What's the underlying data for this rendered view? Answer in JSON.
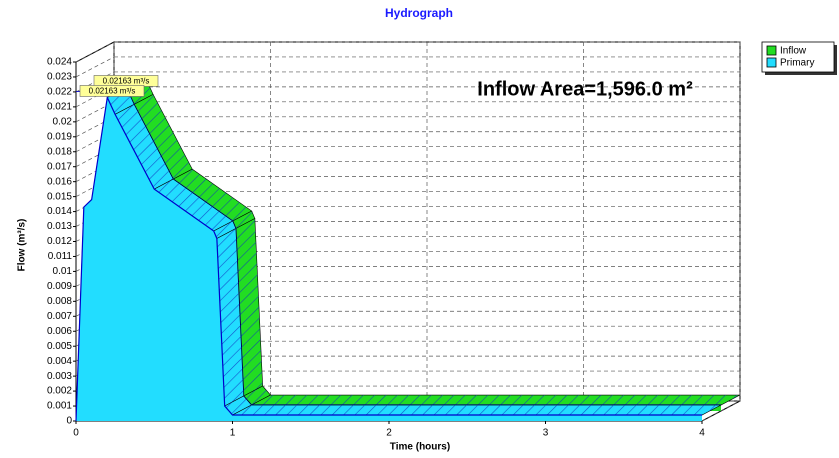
{
  "chart_data": {
    "type": "line",
    "title": "Hydrograph",
    "x_label": "Time (hours)",
    "y_label": "Flow (m³/s)",
    "annotation": "Inflow Area=1,596.0 m²",
    "peak_labels": [
      "0.02163 m³/s",
      "0.02163 m³/s"
    ],
    "x": [
      0,
      0.05,
      0.1,
      0.2,
      0.25,
      0.5,
      0.88,
      0.9,
      0.95,
      1.0,
      4.0
    ],
    "series": [
      {
        "name": "Inflow",
        "color": "#22dd22",
        "values": [
          0,
          0.0143,
          0.0148,
          0.02163,
          0.0205,
          0.0155,
          0.0127,
          0.0122,
          0.001,
          0.0004,
          0.0004
        ]
      },
      {
        "name": "Primary",
        "color": "#22ddff",
        "values": [
          0,
          0.0143,
          0.0148,
          0.02163,
          0.0205,
          0.0155,
          0.0127,
          0.0122,
          0.001,
          0.0004,
          0.0004
        ]
      }
    ],
    "xlim": [
      0,
      4
    ],
    "xticks": [
      0,
      1,
      2,
      3,
      4
    ],
    "ylim": [
      0,
      0.024
    ],
    "yticks": [
      0,
      0.001,
      0.002,
      0.003,
      0.004,
      0.005,
      0.006,
      0.007,
      0.008,
      0.009,
      0.01,
      0.011,
      0.012,
      0.013,
      0.014,
      0.015,
      0.016,
      0.017,
      0.018,
      0.019,
      0.02,
      0.021,
      0.022,
      0.023,
      0.024
    ],
    "grid": true,
    "legend": "right"
  }
}
